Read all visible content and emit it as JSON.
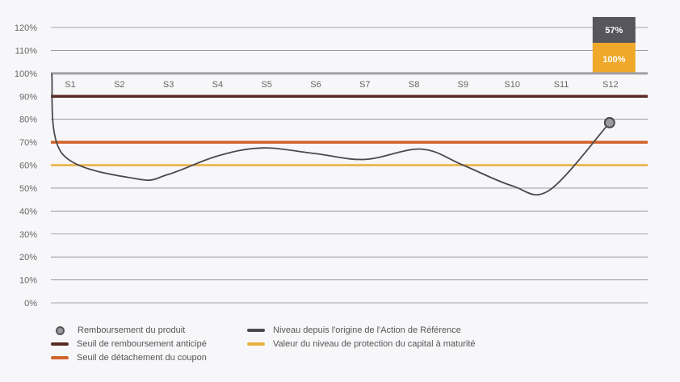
{
  "chart_data": {
    "type": "line",
    "y_ticks": [
      "0%",
      "10%",
      "20%",
      "30%",
      "40%",
      "50%",
      "60%",
      "70%",
      "80%",
      "90%",
      "100%",
      "110%",
      "120%"
    ],
    "ylim": [
      0,
      120
    ],
    "grid": true,
    "categories": [
      "S1",
      "S2",
      "S3",
      "S4",
      "S5",
      "S6",
      "S7",
      "S8",
      "S9",
      "S10",
      "S11",
      "S12"
    ],
    "series": [
      {
        "name": "Niveau depuis l'origine de l'Action de Référence",
        "color": "#4a4a4e",
        "start": 100,
        "values": [
          65,
          54,
          56,
          64,
          67.5,
          65,
          62.5,
          67,
          60,
          51,
          49,
          78.5
        ]
      }
    ],
    "thresholds": [
      {
        "name": "Seuil de remboursement anticipé",
        "value": 90,
        "color": "#5a2a22"
      },
      {
        "name": "Seuil de détachement du coupon",
        "value": 70,
        "color": "#d2622a"
      },
      {
        "name": "Valeur du niveau de protection du capital à maturité",
        "value": 60,
        "color": "#e8b040"
      }
    ],
    "reference_line": {
      "value": 100,
      "color": "#a0a0a4"
    },
    "redemption_point": {
      "name": "Remboursement du produit",
      "category": "S12",
      "value": 78.5
    },
    "annotation_box": {
      "category": "S12",
      "top_label": "57%",
      "top_color": "#56565c",
      "bottom_label": "100%",
      "bottom_color": "#f0a82a"
    },
    "legend_position": "bottom"
  }
}
